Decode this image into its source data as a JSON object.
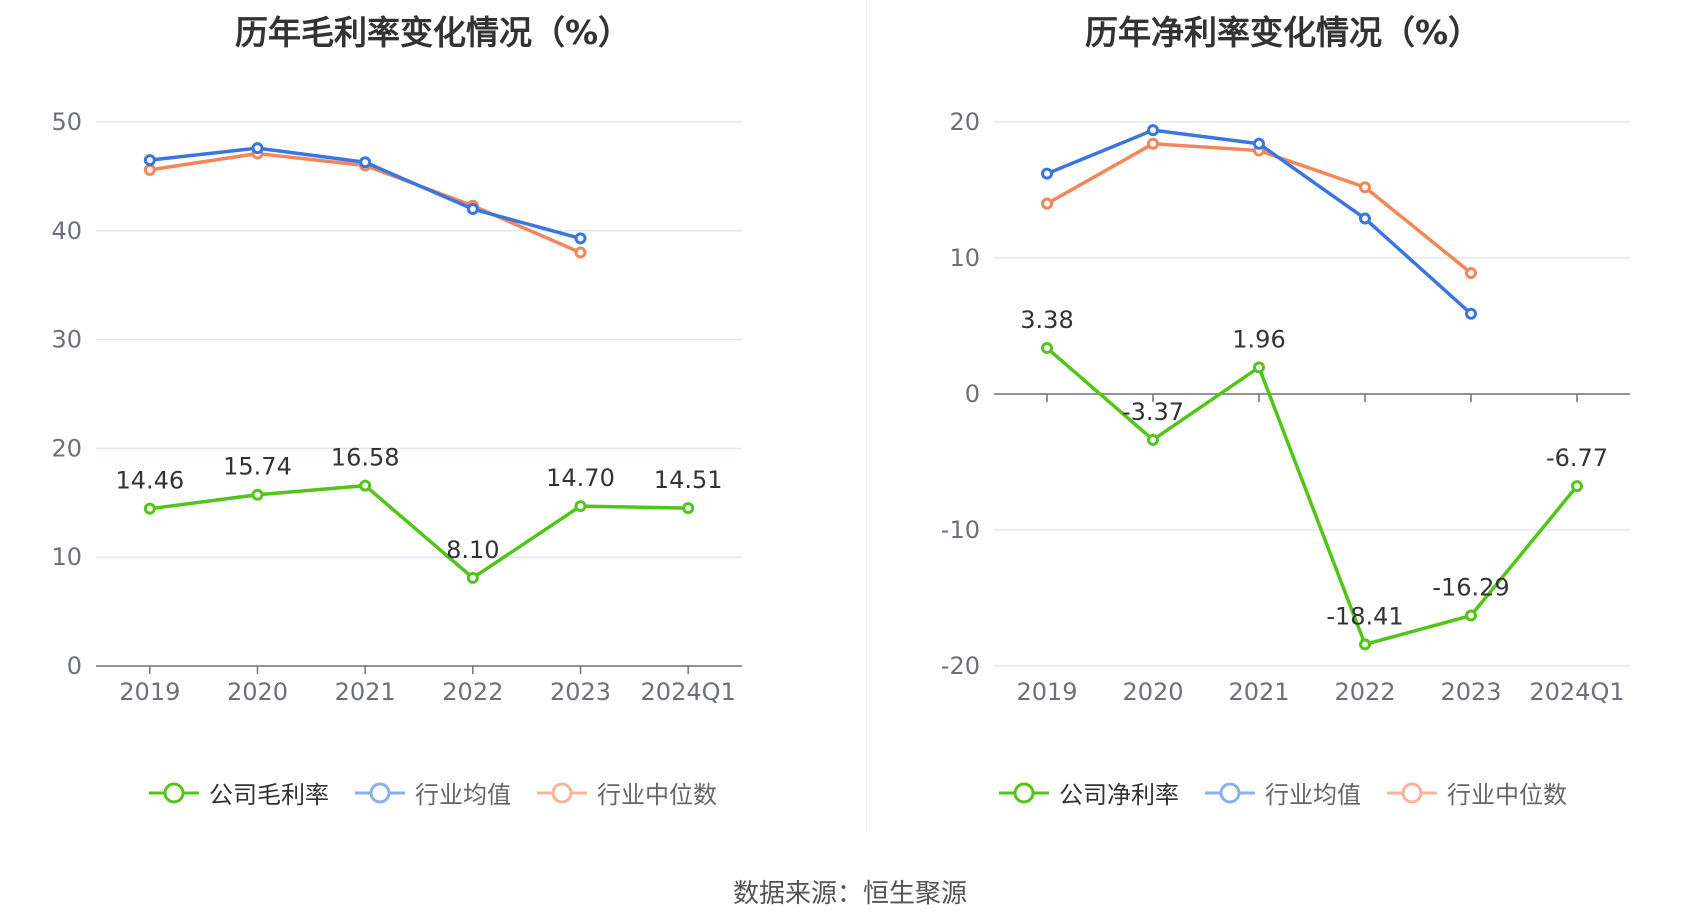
{
  "source_label": "数据来源：恒生聚源",
  "chart_data": [
    {
      "type": "line",
      "title": "历年毛利率变化情况（%）",
      "categories": [
        "2019",
        "2020",
        "2021",
        "2022",
        "2023",
        "2024Q1"
      ],
      "ylim": [
        0,
        50
      ],
      "yticks": [
        0,
        10,
        20,
        30,
        40,
        50
      ],
      "grid": true,
      "legend_position": "bottom-center",
      "series": [
        {
          "name": "公司毛利率",
          "color": "#52c41a",
          "values": [
            14.46,
            15.74,
            16.58,
            8.1,
            14.7,
            14.51
          ],
          "labels": [
            "14.46",
            "15.74",
            "16.58",
            "8.10",
            "14.70",
            "14.51"
          ]
        },
        {
          "name": "行业均值",
          "color": "#3a75e0",
          "values": [
            46.5,
            47.6,
            46.3,
            42.0,
            39.3,
            null
          ]
        },
        {
          "name": "行业中位数",
          "color": "#f5855a",
          "values": [
            45.6,
            47.1,
            46.0,
            42.3,
            38.0,
            null
          ]
        }
      ]
    },
    {
      "type": "line",
      "title": "历年净利率变化情况（%）",
      "categories": [
        "2019",
        "2020",
        "2021",
        "2022",
        "2023",
        "2024Q1"
      ],
      "ylim": [
        -20,
        20
      ],
      "yticks": [
        -20,
        -10,
        0,
        10,
        20
      ],
      "grid": true,
      "legend_position": "bottom-center",
      "series": [
        {
          "name": "公司净利率",
          "color": "#52c41a",
          "values": [
            3.38,
            -3.37,
            1.96,
            -18.41,
            -16.29,
            -6.77
          ],
          "labels": [
            "3.38",
            "-3.37",
            "1.96",
            "-18.41",
            "-16.29",
            "-6.77"
          ]
        },
        {
          "name": "行业均值",
          "color": "#3a75e0",
          "values": [
            16.2,
            19.4,
            18.4,
            12.9,
            5.9,
            null
          ]
        },
        {
          "name": "行业中位数",
          "color": "#f5855a",
          "values": [
            14.0,
            18.4,
            17.9,
            15.2,
            8.9,
            null
          ]
        }
      ]
    }
  ]
}
